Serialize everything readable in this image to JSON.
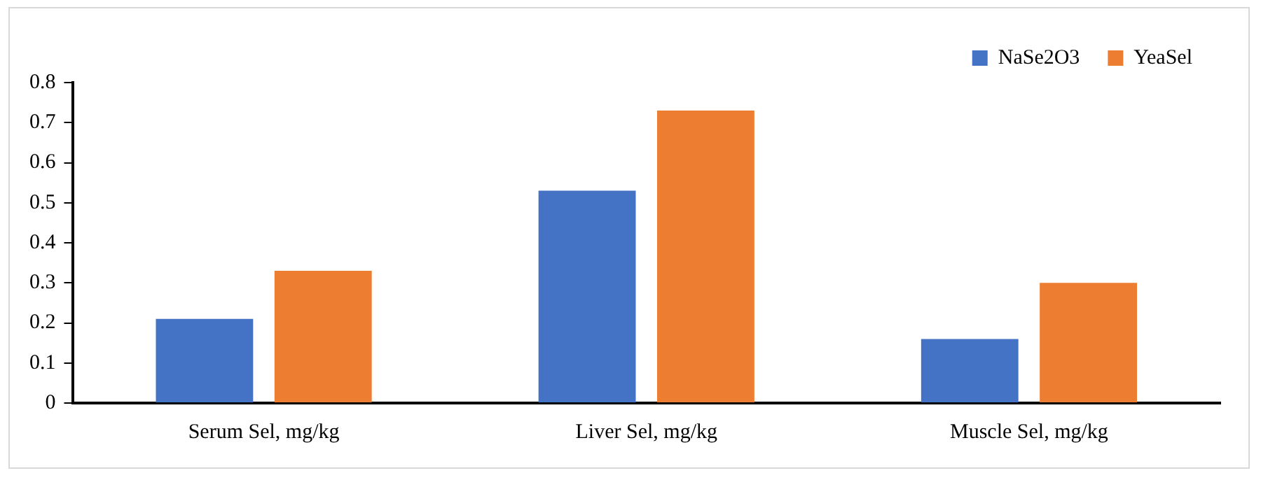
{
  "chart_data": {
    "type": "bar",
    "categories": [
      "Serum Sel, mg/kg",
      "Liver Sel, mg/kg",
      "Muscle Sel, mg/kg"
    ],
    "series": [
      {
        "name": "NaSe2O3",
        "color": "#4472c4",
        "values": [
          0.21,
          0.53,
          0.16
        ]
      },
      {
        "name": "YeaSel",
        "color": "#ed7d31",
        "values": [
          0.33,
          0.73,
          0.3
        ]
      }
    ],
    "ylim": [
      0,
      0.8
    ],
    "yticks": [
      0,
      0.1,
      0.2,
      0.3,
      0.4,
      0.5,
      0.6,
      0.7,
      0.8
    ],
    "grid": false,
    "legend": "top right"
  }
}
